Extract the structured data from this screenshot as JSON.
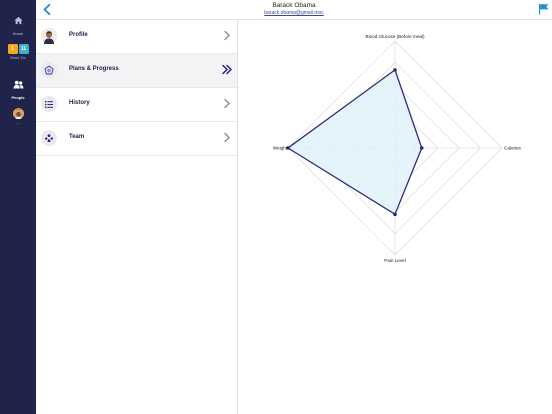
{
  "rail": {
    "items": [
      {
        "label": "Home",
        "icon": "home-icon"
      },
      {
        "label": "Work Do",
        "icon": "todo-badges",
        "badges": [
          "1",
          "11"
        ]
      },
      {
        "label": "People",
        "icon": "people-icon",
        "active": true
      },
      {
        "label": "...",
        "icon": "user-avatar"
      }
    ],
    "colors": {
      "background": "#20244a",
      "badge_orange": "#f5a623",
      "badge_teal": "#3ab0c9"
    }
  },
  "header": {
    "title": "Barack Obama",
    "email": "barack.obama@gmail.moc",
    "back_icon": "chevron-left-icon",
    "flag_icon": "flag-icon",
    "accent_color": "#1f8fcf"
  },
  "menu": {
    "items": [
      {
        "label": "Profile",
        "icon": "profile-photo",
        "chevron": "chevron-right-icon"
      },
      {
        "label": "Plans & Progress",
        "icon": "plans-icon",
        "chevron": "double-chevron-right-icon",
        "selected": true
      },
      {
        "label": "History",
        "icon": "list-icon",
        "chevron": "chevron-right-icon"
      },
      {
        "label": "Team",
        "icon": "team-icon",
        "chevron": "chevron-right-icon"
      }
    ]
  },
  "chart_data": {
    "type": "radar",
    "axes": [
      "Blood Glucose (Before meal)",
      "Calories",
      "Pain Level",
      "Weight"
    ],
    "series": [
      {
        "values": [
          0.73,
          0.25,
          0.62,
          1.0
        ]
      }
    ],
    "range": [
      0,
      1
    ],
    "rings": 5,
    "grid": true,
    "colors": {
      "line": "#2d2a7a",
      "fill": "#dff0fa",
      "grid": "#d6d6d6"
    }
  }
}
